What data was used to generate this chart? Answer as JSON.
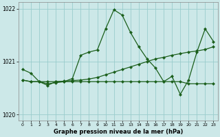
{
  "xlabel": "Graphe pression niveau de la mer (hPa)",
  "background_color": "#cce8e8",
  "grid_color": "#99cccc",
  "line_color": "#1a5e1a",
  "xlim": [
    -0.5,
    23.5
  ],
  "ylim": [
    1019.88,
    1022.12
  ],
  "yticks": [
    1020,
    1021,
    1022
  ],
  "xticks": [
    0,
    1,
    2,
    3,
    4,
    5,
    6,
    7,
    8,
    9,
    10,
    11,
    12,
    13,
    14,
    15,
    16,
    17,
    18,
    19,
    20,
    21,
    22,
    23
  ],
  "line1_x": [
    0,
    1,
    2,
    3,
    4,
    5,
    6,
    7,
    8,
    9,
    10,
    11,
    12,
    13,
    14,
    15,
    16,
    17,
    18,
    19,
    20,
    21,
    22,
    23
  ],
  "line1_y": [
    1020.85,
    1020.78,
    1020.62,
    1020.58,
    1020.6,
    1020.62,
    1020.68,
    1021.12,
    1021.18,
    1021.22,
    1021.62,
    1021.98,
    1021.88,
    1021.55,
    1021.28,
    1021.05,
    1020.88,
    1020.62,
    1020.72,
    1020.38,
    1020.65,
    1021.18,
    1021.62,
    1021.38
  ],
  "line2_x": [
    0,
    1,
    2,
    3,
    4,
    5,
    6,
    7,
    8,
    9,
    10,
    11,
    12,
    13,
    14,
    15,
    16,
    17,
    18,
    19,
    20,
    21,
    22,
    23
  ],
  "line2_y": [
    1020.65,
    1020.62,
    1020.62,
    1020.62,
    1020.62,
    1020.63,
    1020.64,
    1020.65,
    1020.67,
    1020.7,
    1020.75,
    1020.8,
    1020.85,
    1020.9,
    1020.95,
    1021.0,
    1021.05,
    1021.08,
    1021.12,
    1021.15,
    1021.18,
    1021.2,
    1021.23,
    1021.28
  ],
  "line3_x": [
    0,
    1,
    2,
    3,
    4,
    5,
    6,
    7,
    8,
    9,
    10,
    11,
    12,
    13,
    14,
    15,
    16,
    17,
    18,
    19,
    20,
    21,
    22,
    23
  ],
  "line3_y": [
    1020.65,
    1020.62,
    1020.62,
    1020.55,
    1020.62,
    1020.62,
    1020.62,
    1020.62,
    1020.62,
    1020.62,
    1020.62,
    1020.62,
    1020.62,
    1020.62,
    1020.62,
    1020.62,
    1020.62,
    1020.62,
    1020.62,
    1020.62,
    1020.58,
    1020.58,
    1020.58,
    1020.58
  ]
}
